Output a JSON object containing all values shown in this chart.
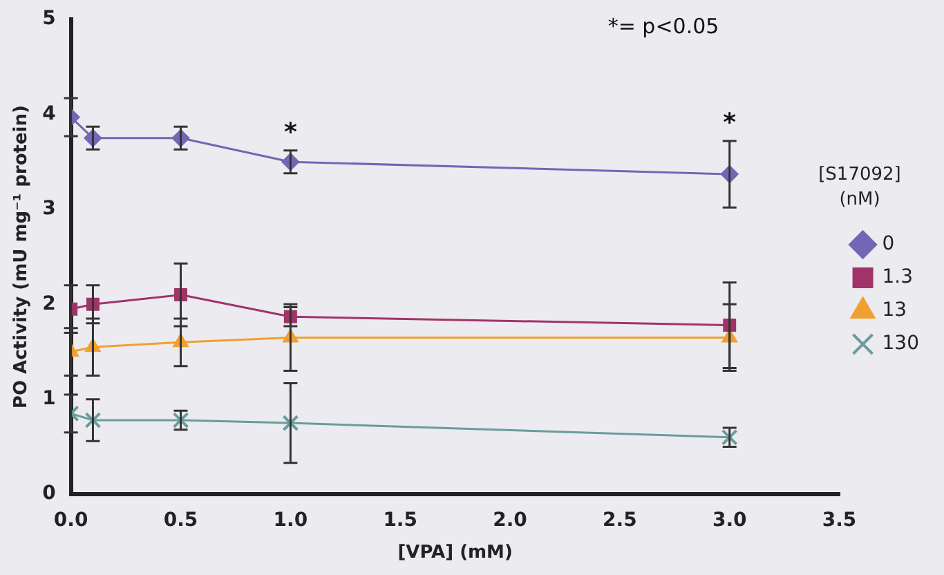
{
  "chart_data": {
    "type": "line",
    "xlabel": "[VPA] (mM)",
    "ylabel": "PO Activity (mU mg⁻¹ protein)",
    "legend_title": "[S17092]\n(nM)",
    "legend": "right",
    "grid": false,
    "x": [
      0,
      0.1,
      0.5,
      1.0,
      3.0
    ],
    "xlim": [
      0,
      3.5
    ],
    "xticks": [
      {
        "value": 0,
        "label": "0.0"
      },
      {
        "value": 0.5,
        "label": "0.5"
      },
      {
        "value": 1,
        "label": "1.0"
      },
      {
        "value": 1.5,
        "label": "1.5"
      },
      {
        "value": 2,
        "label": "2.0"
      },
      {
        "value": 2.5,
        "label": "2.5"
      },
      {
        "value": 3,
        "label": "3.0"
      },
      {
        "value": 3.5,
        "label": "3.5"
      }
    ],
    "ylim": [
      0,
      5
    ],
    "yticks": [
      0,
      1,
      2,
      3,
      4,
      5
    ],
    "series": [
      {
        "name": "0",
        "color": "#7466b4",
        "marker": "diamond",
        "values": [
          3.97,
          3.75,
          3.75,
          3.5,
          3.37
        ],
        "errors": [
          0.2,
          0.12,
          0.12,
          0.12,
          0.35
        ]
      },
      {
        "name": "1.3",
        "color": "#a03468",
        "marker": "square",
        "values": [
          1.95,
          2.0,
          2.1,
          1.87,
          1.78
        ],
        "errors": [
          0.25,
          0.2,
          0.33,
          0.1,
          0.45
        ]
      },
      {
        "name": "13",
        "color": "#f0a030",
        "marker": "triangle",
        "values": [
          1.5,
          1.55,
          1.6,
          1.65,
          1.65
        ],
        "errors": [
          0.25,
          0.3,
          0.25,
          0.35,
          0.35
        ]
      },
      {
        "name": "130",
        "color": "#6a9c9c",
        "marker": "cross",
        "values": [
          0.85,
          0.78,
          0.78,
          0.75,
          0.6
        ],
        "errors": [
          0.2,
          0.22,
          0.1,
          0.42,
          0.1
        ]
      }
    ],
    "annotations": [
      "*= p<0.05",
      {
        "text": "*",
        "x": 1.0,
        "y": 3.5
      },
      {
        "text": "*",
        "x": 3.0,
        "y": 3.37
      }
    ]
  }
}
